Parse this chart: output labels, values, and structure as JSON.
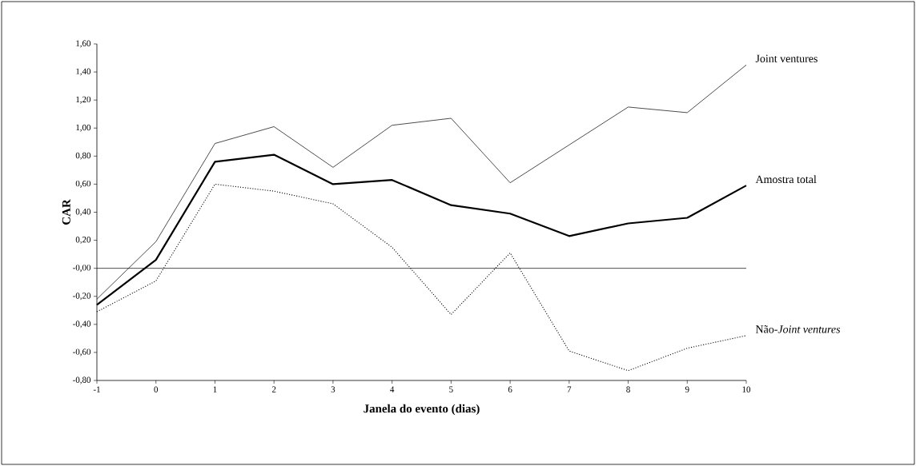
{
  "chart_data": {
    "type": "line",
    "xlabel": "Janela do evento (dias)",
    "ylabel": "CAR",
    "x": [
      -1,
      0,
      1,
      2,
      3,
      4,
      5,
      6,
      7,
      8,
      9,
      10
    ],
    "series": [
      {
        "name": "Joint ventures",
        "color": "#000000",
        "line_style": "solid",
        "values": [
          -0.22,
          0.19,
          0.89,
          1.01,
          0.72,
          1.02,
          1.07,
          0.61,
          0.88,
          1.15,
          1.11,
          1.45
        ]
      },
      {
        "name": "Amostra total",
        "color": "#000000",
        "line_style": "solid",
        "values": [
          -0.26,
          0.06,
          0.76,
          0.81,
          0.6,
          0.63,
          0.45,
          0.39,
          0.23,
          0.32,
          0.36,
          0.59
        ]
      },
      {
        "name": "Não-*Joint ventures*",
        "color": "#000000",
        "line_style": "dotted",
        "values": [
          -0.31,
          -0.09,
          0.6,
          0.55,
          0.46,
          0.15,
          -0.33,
          0.11,
          -0.59,
          -0.73,
          -0.57,
          -0.48
        ]
      }
    ],
    "xlim": [
      -1,
      10
    ],
    "ylim": [
      -0.8,
      1.6
    ],
    "xticks": [
      -1,
      0,
      1,
      2,
      3,
      4,
      5,
      6,
      7,
      8,
      9,
      10
    ],
    "yticks": [
      {
        "value": -0.8,
        "label": "-0,80"
      },
      {
        "value": -0.6,
        "label": "-0,60"
      },
      {
        "value": -0.4,
        "label": "-0,40"
      },
      {
        "value": -0.2,
        "label": "-0,20"
      },
      {
        "value": 0,
        "label": "-0,00"
      },
      {
        "value": 0.2,
        "label": "0,20"
      },
      {
        "value": 0.4,
        "label": "0,40"
      },
      {
        "value": 0.6,
        "label": "0,60"
      },
      {
        "value": 0.8,
        "label": "0,80"
      },
      {
        "value": 1.0,
        "label": "1,00"
      },
      {
        "value": 1.2,
        "label": "1,20"
      },
      {
        "value": 1.4,
        "label": "1,40"
      },
      {
        "value": 1.6,
        "label": "1,60"
      }
    ],
    "ref_lines": [
      {
        "axis": "y",
        "value": 0,
        "color": "#000000"
      }
    ],
    "marker": "none"
  }
}
